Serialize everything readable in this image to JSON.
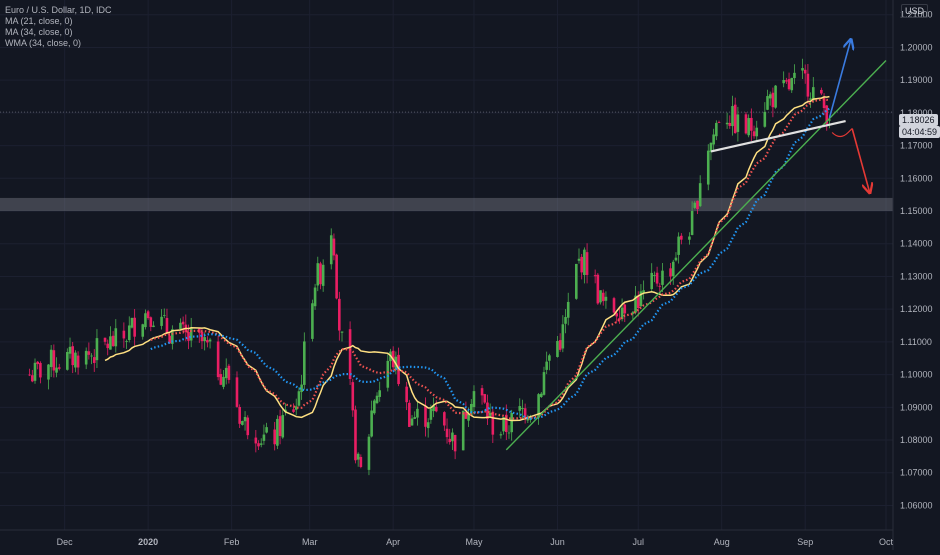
{
  "legend": {
    "title": "Euro / U.S. Dollar, 1D, IDC",
    "indicator1": "MA (21, close, 0)",
    "indicator2": "MA (34, close, 0)",
    "indicator3": "WMA (34, close, 0)"
  },
  "price_axis": {
    "currency": "USD",
    "last_price": "1.18026",
    "countdown": "04:04:59"
  },
  "colors": {
    "background": "#131722",
    "up": "#26a69a",
    "down": "#ef5350",
    "candle_up": "#4caf50",
    "candle_down": "#e91e63",
    "ma21": "#ffe082",
    "ma34": "#ef5350",
    "wma34": "#2196f3",
    "trendline": "#4caf50",
    "neckline": "#e0e0e0",
    "zone": "#787b86"
  },
  "chart_data": {
    "type": "candlestick",
    "title": "Euro / U.S. Dollar, 1D, IDC",
    "y_ticks": [
      "1.21000",
      "1.20000",
      "1.19000",
      "1.18000",
      "1.17000",
      "1.16000",
      "1.15000",
      "1.14000",
      "1.13000",
      "1.12000",
      "1.11000",
      "1.10000",
      "1.09000",
      "1.08000",
      "1.07000",
      "1.06000"
    ],
    "x_ticks": [
      "Dec",
      "2020",
      "Feb",
      "Mar",
      "Apr",
      "May",
      "Jun",
      "Jul",
      "Aug",
      "Sep",
      "Oct"
    ],
    "ylim": [
      1.0525,
      1.2145
    ],
    "last_price": 1.18026,
    "support_zone": [
      1.15,
      1.154
    ],
    "series": [
      {
        "name": "MA (21, close, 0)"
      },
      {
        "name": "MA (34, close, 0)"
      },
      {
        "name": "WMA (34, close, 0)"
      }
    ],
    "anchors": [
      {
        "x": "2019-11-18",
        "y": 1.1
      },
      {
        "x": "2019-11-28",
        "y": 1.104
      },
      {
        "x": "2019-12-09",
        "y": 1.106
      },
      {
        "x": "2019-12-20",
        "y": 1.11
      },
      {
        "x": "2020-01-01",
        "y": 1.119
      },
      {
        "x": "2020-01-10",
        "y": 1.113
      },
      {
        "x": "2020-01-20",
        "y": 1.11
      },
      {
        "x": "2020-01-30",
        "y": 1.1
      },
      {
        "x": "2020-02-06",
        "y": 1.085
      },
      {
        "x": "2020-02-15",
        "y": 1.08
      },
      {
        "x": "2020-02-24",
        "y": 1.09
      },
      {
        "x": "2020-03-04",
        "y": 1.13
      },
      {
        "x": "2020-03-09",
        "y": 1.145
      },
      {
        "x": "2020-03-13",
        "y": 1.11
      },
      {
        "x": "2020-03-20",
        "y": 1.07
      },
      {
        "x": "2020-03-26",
        "y": 1.095
      },
      {
        "x": "2020-03-31",
        "y": 1.105
      },
      {
        "x": "2020-04-08",
        "y": 1.087
      },
      {
        "x": "2020-04-17",
        "y": 1.088
      },
      {
        "x": "2020-04-24",
        "y": 1.08
      },
      {
        "x": "2020-05-01",
        "y": 1.095
      },
      {
        "x": "2020-05-10",
        "y": 1.083
      },
      {
        "x": "2020-05-22",
        "y": 1.09
      },
      {
        "x": "2020-06-01",
        "y": 1.11
      },
      {
        "x": "2020-06-10",
        "y": 1.135
      },
      {
        "x": "2020-06-20",
        "y": 1.12
      },
      {
        "x": "2020-07-01",
        "y": 1.123
      },
      {
        "x": "2020-07-10",
        "y": 1.13
      },
      {
        "x": "2020-07-20",
        "y": 1.145
      },
      {
        "x": "2020-07-27",
        "y": 1.17
      },
      {
        "x": "2020-08-01",
        "y": 1.18
      },
      {
        "x": "2020-08-10",
        "y": 1.175
      },
      {
        "x": "2020-08-20",
        "y": 1.185
      },
      {
        "x": "2020-08-31",
        "y": 1.19
      },
      {
        "x": "2020-09-10",
        "y": 1.1805
      }
    ]
  }
}
